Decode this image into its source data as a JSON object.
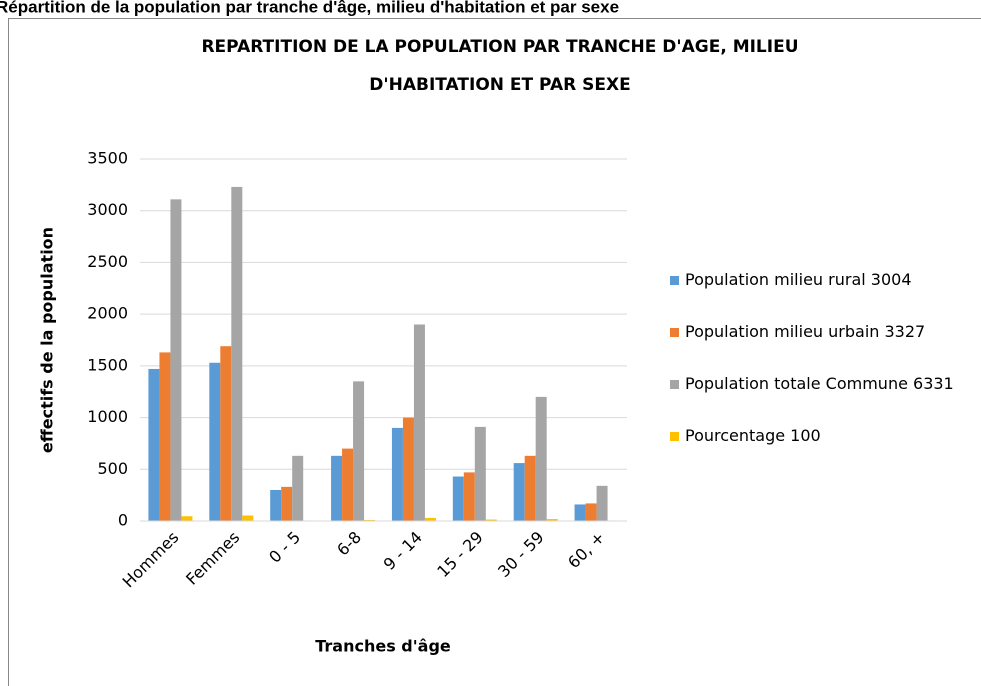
{
  "page_title": "Répartition de la population par tranche d'âge, milieu d'habitation et par sexe",
  "chart_data": {
    "type": "bar",
    "title": "REPARTITION DE LA POPULATION PAR TRANCHE D'AGE, MILIEU D'HABITATION ET PAR SEXE",
    "x_label": "Tranches d'âge",
    "y_label": "effectifs de la population",
    "categories": [
      "Hommes",
      "Femmes",
      "0 - 5",
      "6-8",
      "9 - 14",
      "15 - 29",
      "30 - 59",
      "60, +"
    ],
    "series": [
      {
        "name": "Population milieu rural 3004",
        "color": "#5b9bd5",
        "values": [
          1470,
          1530,
          300,
          630,
          900,
          430,
          560,
          160
        ]
      },
      {
        "name": "Population milieu urbain 3327",
        "color": "#ed7d31",
        "values": [
          1630,
          1690,
          330,
          700,
          1000,
          470,
          630,
          170
        ]
      },
      {
        "name": "Population totale Commune 6331",
        "color": "#a5a5a5",
        "values": [
          3110,
          3230,
          630,
          1350,
          1900,
          910,
          1200,
          340
        ]
      },
      {
        "name": "Pourcentage 100",
        "color": "#ffc000",
        "values": [
          46,
          53,
          5,
          10,
          30,
          14,
          19,
          5
        ]
      }
    ],
    "ylim": [
      0,
      3500
    ],
    "yticks": [
      0,
      500,
      1000,
      1500,
      2000,
      2500,
      3000,
      3500
    ],
    "grid": true,
    "legend": "right"
  }
}
